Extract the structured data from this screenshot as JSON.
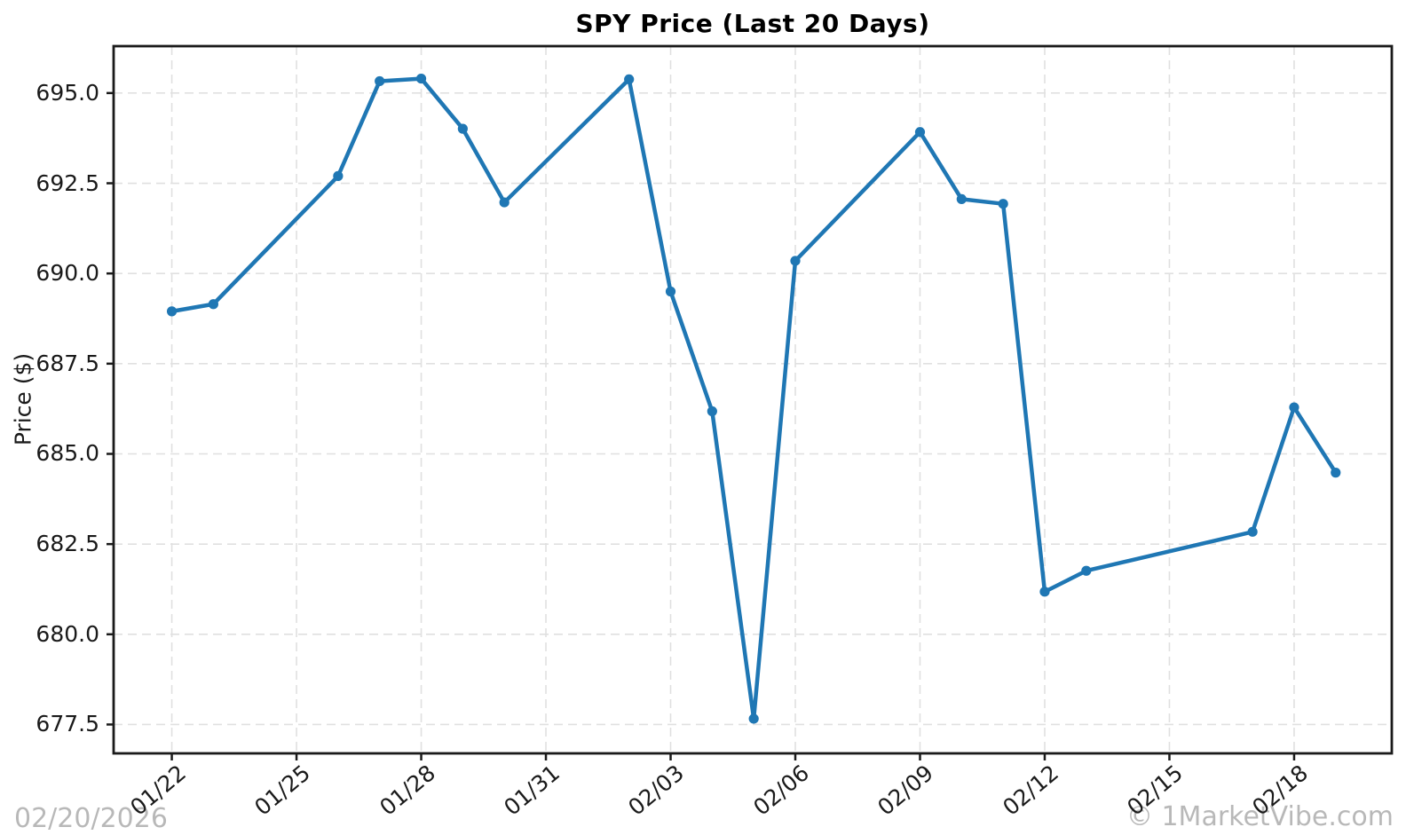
{
  "chart_data": {
    "type": "line",
    "title": "SPY Price (Last 20 Days)",
    "xlabel": "",
    "ylabel": "Price ($)",
    "grid": true,
    "legend": null,
    "line_color": "#1f77b4",
    "marker": "o",
    "dates": [
      "01/22",
      "01/23",
      "01/26",
      "01/27",
      "01/28",
      "01/29",
      "01/30",
      "02/02",
      "02/03",
      "02/04",
      "02/05",
      "02/06",
      "02/09",
      "02/10",
      "02/11",
      "02/12",
      "02/13",
      "02/17",
      "02/18",
      "02/19"
    ],
    "day_offsets": [
      0,
      1,
      4,
      5,
      6,
      7,
      8,
      11,
      12,
      13,
      14,
      15,
      18,
      19,
      20,
      21,
      22,
      26,
      27,
      28
    ],
    "values": [
      688.95,
      689.15,
      692.7,
      695.33,
      695.4,
      694.01,
      691.97,
      695.38,
      689.5,
      686.18,
      677.66,
      690.35,
      693.92,
      692.06,
      691.93,
      681.18,
      681.76,
      682.84,
      686.29,
      684.48
    ],
    "x_tick_labels": [
      "01/22",
      "01/25",
      "01/28",
      "01/31",
      "02/03",
      "02/06",
      "02/09",
      "02/12",
      "02/15",
      "02/18"
    ],
    "x_tick_days": [
      0,
      3,
      6,
      9,
      12,
      15,
      18,
      21,
      24,
      27
    ],
    "y_tick_labels": [
      "695.0",
      "692.5",
      "690.0",
      "687.5",
      "685.0",
      "682.5",
      "680.0",
      "677.5"
    ],
    "y_tick_values": [
      695.0,
      692.5,
      690.0,
      687.5,
      685.0,
      682.5,
      680.0,
      677.5
    ],
    "xlim_days": [
      -1.4,
      29.35
    ],
    "ylim": [
      676.7,
      696.3
    ],
    "colors": {
      "line": "#1f77b4",
      "grid": "#e0e0e0",
      "spine": "#1a1a1a",
      "tick_text": "#1a1a1a"
    }
  },
  "watermarks": {
    "date": "02/20/2026",
    "site": "© 1MarketVibe.com"
  }
}
